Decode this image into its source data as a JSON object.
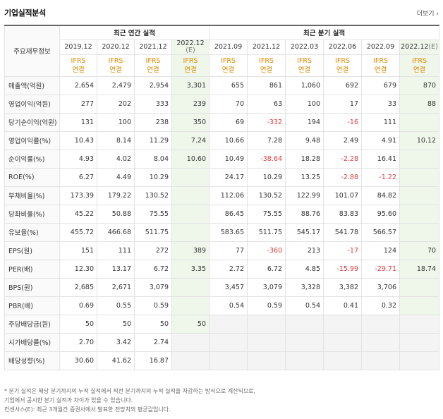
{
  "header": {
    "title": "기업실적분석",
    "more_label": "더보기 ›"
  },
  "table": {
    "row_head_label": "주요재무정보",
    "annual_group": "최근 연간 실적",
    "quarter_group": "최근 분기 실적",
    "annual_periods": [
      "2019.12",
      "2020.12",
      "2021.12",
      "2022.12"
    ],
    "annual_estimate_mark": "(E)",
    "quarter_periods": [
      "2021.09",
      "2021.12",
      "2022.03",
      "2022.06",
      "2022.09",
      "2022.12"
    ],
    "quarter_estimate_mark": "(E)",
    "ifrs_line1": "IFRS",
    "ifrs_line2": "연결",
    "rows": [
      {
        "label": "매출액(억원)",
        "annual": [
          "2,654",
          "2,479",
          "2,954",
          "3,301"
        ],
        "quarter": [
          "655",
          "861",
          "1,060",
          "692",
          "679",
          "870"
        ]
      },
      {
        "label": "영업이익(억원)",
        "annual": [
          "277",
          "202",
          "333",
          "239"
        ],
        "quarter": [
          "70",
          "63",
          "100",
          "17",
          "33",
          "88"
        ]
      },
      {
        "label": "당기순이익(억원)",
        "annual": [
          "131",
          "100",
          "238",
          "350"
        ],
        "quarter": [
          "69",
          "-332",
          "194",
          "-16",
          "111",
          ""
        ]
      },
      {
        "label": "영업이익률(%)",
        "annual": [
          "10.43",
          "8.14",
          "11.29",
          "7.24"
        ],
        "quarter": [
          "10.66",
          "7.28",
          "9.48",
          "2.49",
          "4.91",
          "10.12"
        ]
      },
      {
        "label": "순이익률(%)",
        "annual": [
          "4.93",
          "4.02",
          "8.04",
          "10.60"
        ],
        "quarter": [
          "10.49",
          "-38.64",
          "18.28",
          "-2.28",
          "16.41",
          ""
        ]
      },
      {
        "label": "ROE(%)",
        "annual": [
          "6.27",
          "4.49",
          "10.29",
          ""
        ],
        "quarter": [
          "24.17",
          "10.29",
          "13.25",
          "-2.88",
          "-1.22",
          ""
        ]
      },
      {
        "label": "부채비율(%)",
        "annual": [
          "173.39",
          "179.22",
          "130.52",
          ""
        ],
        "quarter": [
          "112.06",
          "130.52",
          "122.99",
          "101.07",
          "84.82",
          ""
        ]
      },
      {
        "label": "당좌비율(%)",
        "annual": [
          "45.22",
          "50.88",
          "75.55",
          ""
        ],
        "quarter": [
          "86.45",
          "75.55",
          "88.76",
          "83.83",
          "95.60",
          ""
        ]
      },
      {
        "label": "유보율(%)",
        "annual": [
          "455.72",
          "466.68",
          "511.75",
          ""
        ],
        "quarter": [
          "583.65",
          "511.75",
          "545.17",
          "541.78",
          "566.57",
          ""
        ]
      },
      {
        "label": "EPS(원)",
        "annual": [
          "151",
          "111",
          "272",
          "389"
        ],
        "quarter": [
          "77",
          "-360",
          "213",
          "-17",
          "124",
          "70"
        ]
      },
      {
        "label": "PER(배)",
        "annual": [
          "12.30",
          "13.17",
          "6.72",
          "3.35"
        ],
        "quarter": [
          "2.72",
          "6.72",
          "4.85",
          "-15.99",
          "-29.71",
          "18.74"
        ]
      },
      {
        "label": "BPS(원)",
        "annual": [
          "2,685",
          "2,671",
          "3,079",
          ""
        ],
        "quarter": [
          "3,457",
          "3,079",
          "3,328",
          "3,382",
          "3,706",
          ""
        ]
      },
      {
        "label": "PBR(배)",
        "annual": [
          "0.69",
          "0.55",
          "0.59",
          ""
        ],
        "quarter": [
          "0.54",
          "0.59",
          "0.54",
          "0.41",
          "0.32",
          ""
        ]
      },
      {
        "label": "주당배당금(원)",
        "annual": [
          "50",
          "50",
          "50",
          "50"
        ],
        "quarter": [
          "",
          "",
          "",
          "",
          "",
          ""
        ]
      },
      {
        "label": "시가배당률(%)",
        "annual": [
          "2.70",
          "3.42",
          "2.74",
          ""
        ],
        "quarter": [
          "",
          "",
          "",
          "",
          "",
          ""
        ]
      },
      {
        "label": "배당성향(%)",
        "annual": [
          "30.60",
          "41.62",
          "16.87",
          ""
        ],
        "quarter": [
          "",
          "",
          "",
          "",
          "",
          ""
        ]
      }
    ]
  },
  "notes": {
    "line1": "* 분기 실적은 해당 분기까지의 누적 실적에서 직전 분기까지의 누적 실적을 차감하는 방식으로 계산되므로,",
    "line2": "  컨센서스(E): 최근 3개월간 증권사에서 발표한 전망치의 평균값입니다."
  },
  "notes_extra": {
    "line": "  기업에서 공시한 분기 실적과 차이가 있을 수 있습니다."
  }
}
